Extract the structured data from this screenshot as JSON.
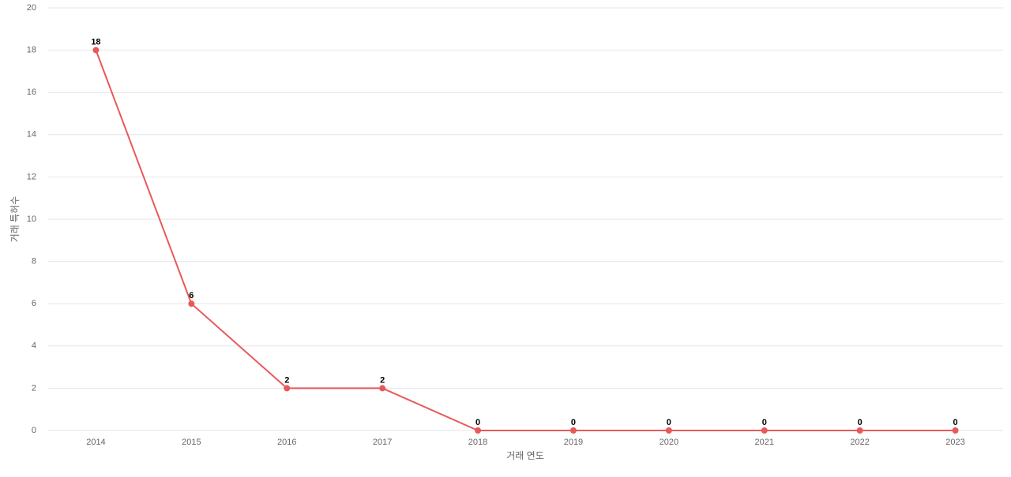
{
  "chart_data": {
    "type": "line",
    "x_label": "거래 연도",
    "y_label": "거래 특허수",
    "categories": [
      "2014",
      "2015",
      "2016",
      "2017",
      "2018",
      "2019",
      "2020",
      "2021",
      "2022",
      "2023"
    ],
    "series": [
      {
        "color": "#e8595a",
        "values": [
          18,
          6,
          2,
          2,
          0,
          0,
          0,
          0,
          0,
          0
        ]
      }
    ],
    "ylim": [
      0,
      20
    ],
    "yticks": [
      0,
      2,
      4,
      6,
      8,
      10,
      12,
      14,
      16,
      18,
      20
    ],
    "grid": true,
    "data_labels": true
  }
}
